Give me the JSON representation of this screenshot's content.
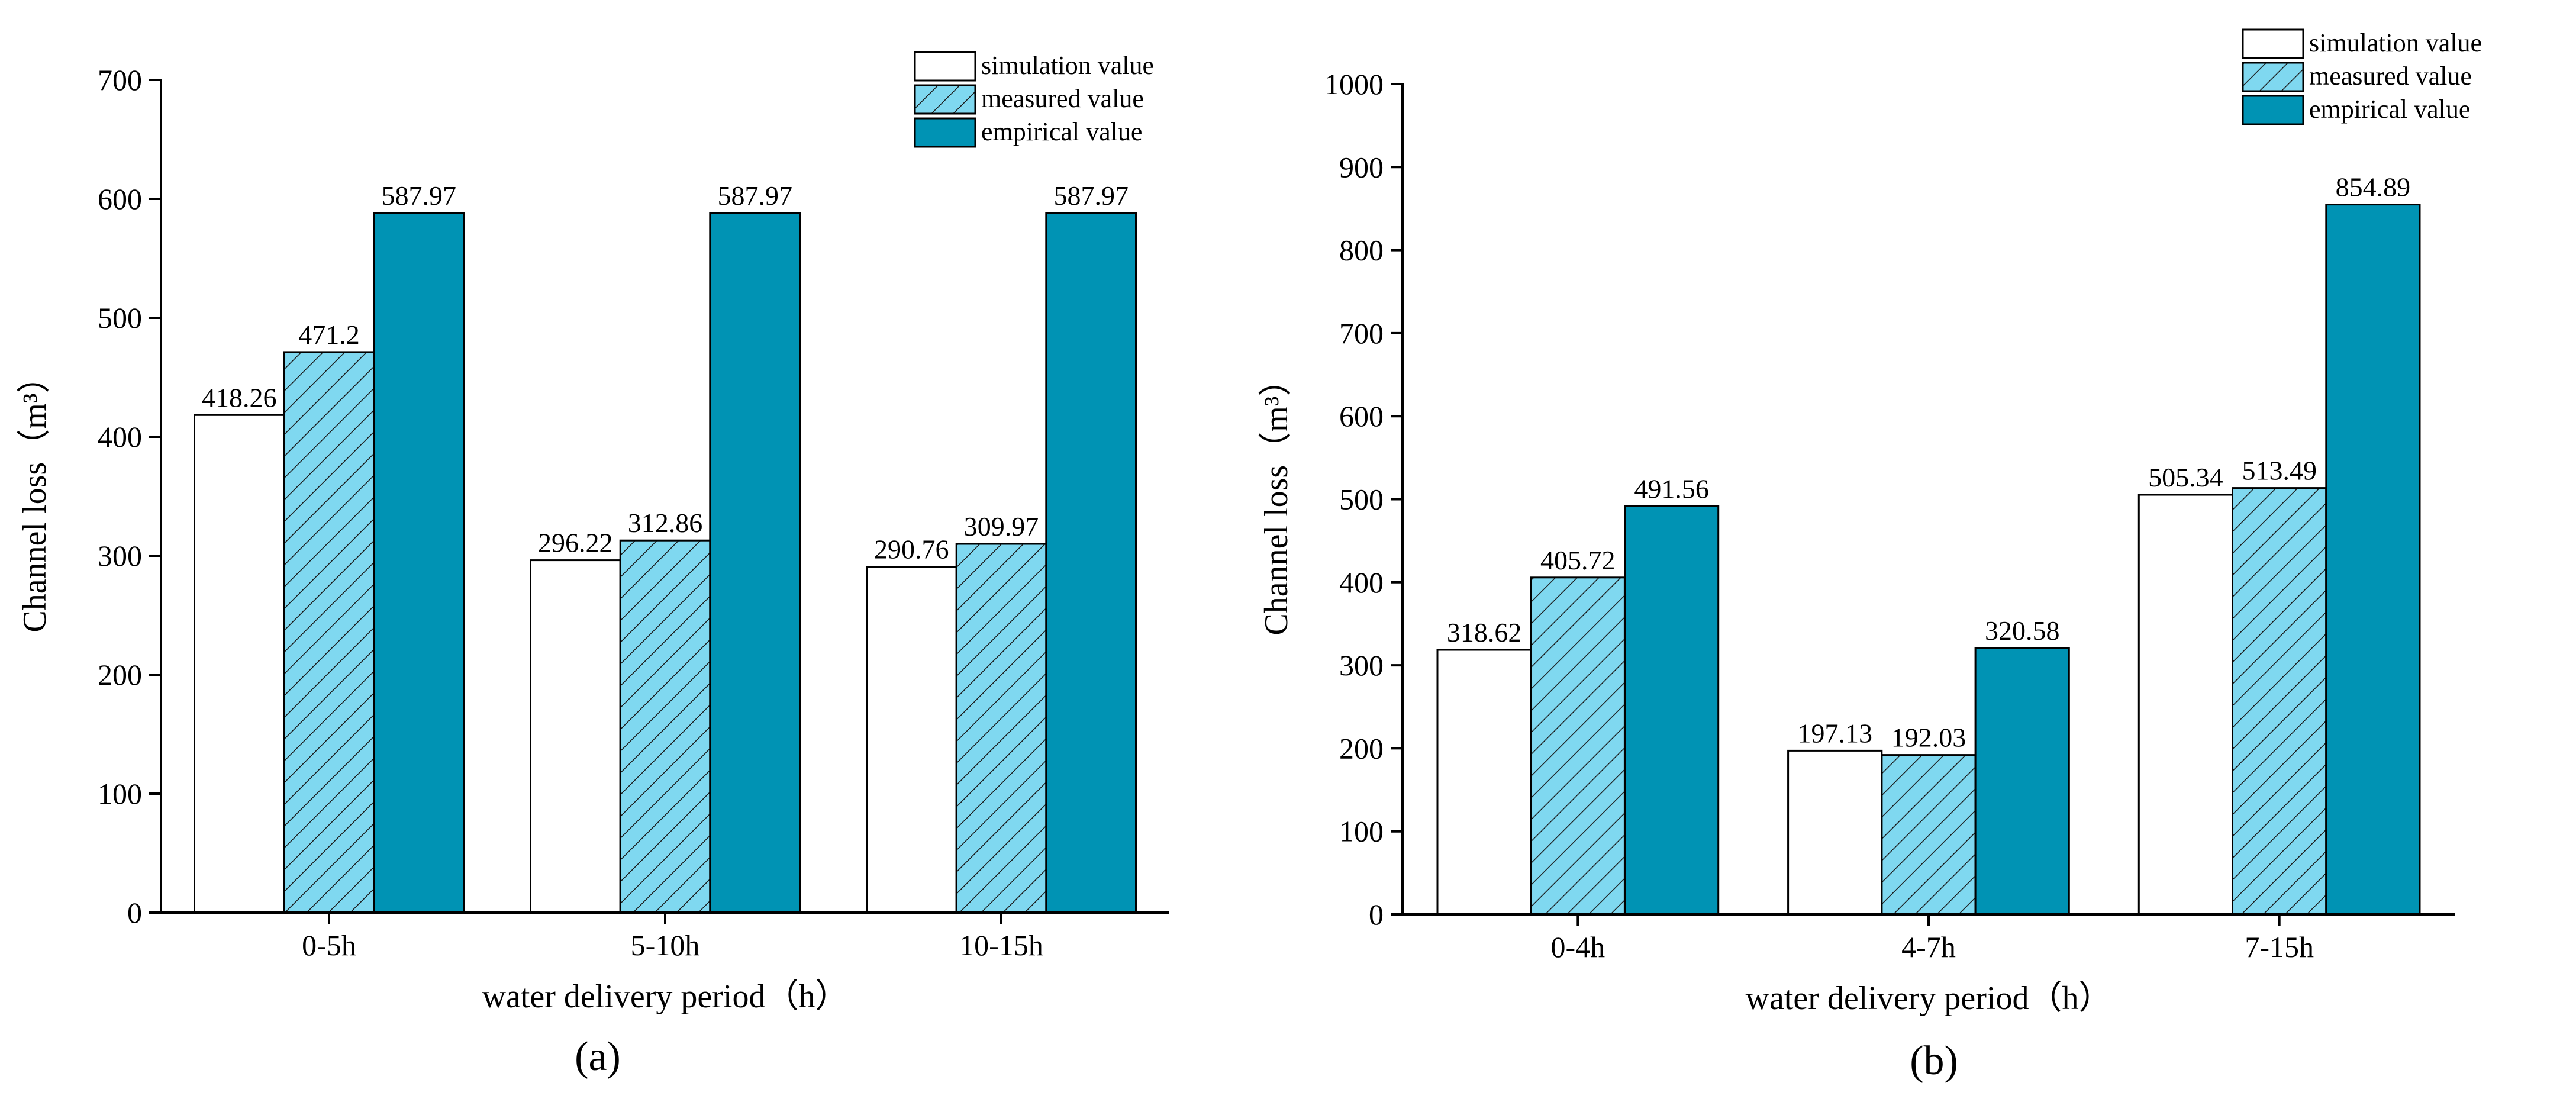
{
  "chart_data": [
    {
      "type": "bar",
      "panel_label": "(a)",
      "categories": [
        "0-5h",
        "5-10h",
        "10-15h"
      ],
      "series": [
        {
          "name": "simulation value",
          "values": [
            418.26,
            296.22,
            290.76
          ],
          "labels": [
            "418.26",
            "296.22",
            "290.76"
          ]
        },
        {
          "name": "measured value",
          "values": [
            471.2,
            312.86,
            309.97
          ],
          "labels": [
            "471.2",
            "312.86",
            "309.97"
          ]
        },
        {
          "name": "empirical value",
          "values": [
            587.97,
            587.97,
            587.97
          ],
          "labels": [
            "587.97",
            "587.97",
            "587.97"
          ]
        }
      ],
      "xlabel": "water delivery period（h）",
      "ylabel": "Channel loss（m³）",
      "ylim": [
        0,
        700
      ],
      "yticks": [
        "0",
        "100",
        "200",
        "300",
        "400",
        "500",
        "600",
        "700"
      ],
      "legend_position": "top-right"
    },
    {
      "type": "bar",
      "panel_label": "(b)",
      "categories": [
        "0-4h",
        "4-7h",
        "7-15h"
      ],
      "series": [
        {
          "name": "simulation value",
          "values": [
            318.62,
            197.13,
            505.34
          ],
          "labels": [
            "318.62",
            "197.13",
            "505.34"
          ]
        },
        {
          "name": "measured value",
          "values": [
            405.72,
            192.03,
            513.49
          ],
          "labels": [
            "405.72",
            "192.03",
            "513.49"
          ]
        },
        {
          "name": "empirical value",
          "values": [
            491.56,
            320.58,
            854.89
          ],
          "labels": [
            "491.56",
            "320.58",
            "854.89"
          ]
        }
      ],
      "xlabel": "water delivery period（h）",
      "ylabel": "Channel loss（m³）",
      "ylim": [
        0,
        1000
      ],
      "yticks": [
        "0",
        "100",
        "200",
        "300",
        "400",
        "500",
        "600",
        "700",
        "800",
        "900",
        "1000"
      ],
      "legend_position": "top-right"
    }
  ],
  "colors": {
    "simulation": "#ffffff",
    "measured": "#7fd8f0",
    "empirical": "#0093b4",
    "outline": "#000000"
  }
}
